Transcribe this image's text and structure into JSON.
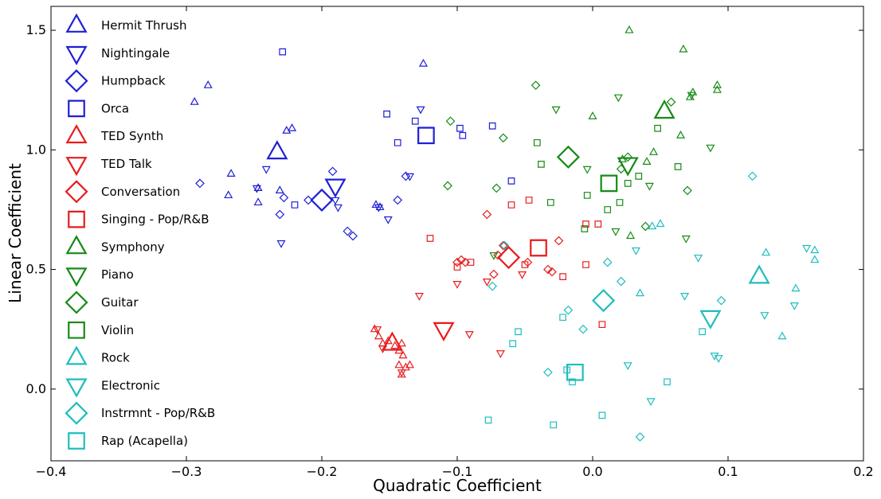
{
  "chart_data": {
    "type": "scatter",
    "title": "",
    "xlabel": "Quadratic Coefficient",
    "ylabel": "Linear Coefficient",
    "xlim": [
      -0.4,
      0.2
    ],
    "ylim": [
      -0.3,
      1.6
    ],
    "x_ticks": [
      -0.4,
      -0.3,
      -0.2,
      -0.1,
      0.0,
      0.1,
      0.2
    ],
    "x_tick_labels": [
      "−0.4",
      "−0.3",
      "−0.2",
      "−0.1",
      "0.0",
      "0.1",
      "0.2"
    ],
    "y_ticks": [
      0.0,
      0.5,
      1.0,
      1.5
    ],
    "y_tick_labels": [
      "0.0",
      "0.5",
      "1.0",
      "1.5"
    ],
    "grid": false,
    "legend_position": "left-inside",
    "colors": {
      "blue": "#1f1fd6",
      "red": "#e81c1c",
      "green": "#178a17",
      "cyan": "#1fbdbd"
    },
    "series": [
      {
        "name": "Hermit Thrush",
        "color": "blue",
        "marker": "triangle-up",
        "points": [
          [
            -0.294,
            1.2
          ],
          [
            -0.284,
            1.27
          ],
          [
            -0.269,
            0.81
          ],
          [
            -0.267,
            0.9
          ],
          [
            -0.247,
            0.84
          ],
          [
            -0.247,
            0.78
          ],
          [
            -0.231,
            0.83
          ],
          [
            -0.226,
            1.08
          ],
          [
            -0.222,
            1.09
          ],
          [
            -0.16,
            0.77
          ],
          [
            -0.157,
            0.76
          ],
          [
            -0.125,
            1.36
          ]
        ],
        "mean": [
          -0.233,
          0.99
        ]
      },
      {
        "name": "Nightingale",
        "color": "blue",
        "marker": "triangle-down",
        "points": [
          [
            -0.248,
            0.84
          ],
          [
            -0.241,
            0.92
          ],
          [
            -0.23,
            0.61
          ],
          [
            -0.19,
            0.79
          ],
          [
            -0.188,
            0.76
          ],
          [
            -0.158,
            0.76
          ],
          [
            -0.151,
            0.71
          ],
          [
            -0.135,
            0.89
          ],
          [
            -0.127,
            1.17
          ]
        ],
        "mean": [
          -0.19,
          0.85
        ]
      },
      {
        "name": "Humpback",
        "color": "blue",
        "marker": "diamond",
        "points": [
          [
            -0.29,
            0.86
          ],
          [
            -0.231,
            0.73
          ],
          [
            -0.228,
            0.8
          ],
          [
            -0.21,
            0.79
          ],
          [
            -0.192,
            0.91
          ],
          [
            -0.181,
            0.66
          ],
          [
            -0.177,
            0.64
          ],
          [
            -0.144,
            0.79
          ],
          [
            -0.138,
            0.89
          ]
        ],
        "mean": [
          -0.2,
          0.79
        ]
      },
      {
        "name": "Orca",
        "color": "blue",
        "marker": "square",
        "points": [
          [
            -0.229,
            1.41
          ],
          [
            -0.22,
            0.77
          ],
          [
            -0.152,
            1.15
          ],
          [
            -0.144,
            1.03
          ],
          [
            -0.131,
            1.12
          ],
          [
            -0.098,
            1.09
          ],
          [
            -0.096,
            1.06
          ],
          [
            -0.074,
            1.1
          ],
          [
            -0.06,
            0.87
          ]
        ],
        "mean": [
          -0.123,
          1.06
        ]
      },
      {
        "name": "TED Synth",
        "color": "red",
        "marker": "triangle-up",
        "points": [
          [
            -0.161,
            0.25
          ],
          [
            -0.158,
            0.22
          ],
          [
            -0.155,
            0.19
          ],
          [
            -0.151,
            0.2
          ],
          [
            -0.146,
            0.18
          ],
          [
            -0.143,
            0.16
          ],
          [
            -0.141,
            0.19
          ],
          [
            -0.143,
            0.1
          ],
          [
            -0.14,
            0.14
          ],
          [
            -0.141,
            0.06
          ],
          [
            -0.138,
            0.09
          ],
          [
            -0.135,
            0.1
          ]
        ],
        "mean": [
          -0.148,
          0.19
        ]
      },
      {
        "name": "TED Talk",
        "color": "red",
        "marker": "triangle-down",
        "points": [
          [
            -0.159,
            0.25
          ],
          [
            -0.155,
            0.17
          ],
          [
            -0.141,
            0.07
          ],
          [
            -0.128,
            0.39
          ],
          [
            -0.1,
            0.44
          ],
          [
            -0.091,
            0.23
          ],
          [
            -0.078,
            0.45
          ],
          [
            -0.068,
            0.15
          ],
          [
            -0.052,
            0.48
          ]
        ],
        "mean": [
          -0.11,
          0.25
        ]
      },
      {
        "name": "Conversation",
        "color": "red",
        "marker": "diamond",
        "points": [
          [
            -0.1,
            0.53
          ],
          [
            -0.097,
            0.54
          ],
          [
            -0.094,
            0.53
          ],
          [
            -0.078,
            0.73
          ],
          [
            -0.073,
            0.48
          ],
          [
            -0.07,
            0.56
          ],
          [
            -0.066,
            0.6
          ],
          [
            -0.048,
            0.53
          ],
          [
            -0.033,
            0.5
          ],
          [
            -0.03,
            0.49
          ],
          [
            -0.025,
            0.62
          ]
        ],
        "mean": [
          -0.062,
          0.55
        ]
      },
      {
        "name": "Singing - Pop/R&B",
        "color": "red",
        "marker": "square",
        "points": [
          [
            -0.12,
            0.63
          ],
          [
            -0.1,
            0.51
          ],
          [
            -0.09,
            0.53
          ],
          [
            -0.06,
            0.77
          ],
          [
            -0.05,
            0.52
          ],
          [
            -0.047,
            0.79
          ],
          [
            -0.022,
            0.47
          ],
          [
            -0.005,
            0.52
          ],
          [
            -0.005,
            0.69
          ],
          [
            0.004,
            0.69
          ],
          [
            0.007,
            0.27
          ]
        ],
        "mean": [
          -0.04,
          0.59
        ]
      },
      {
        "name": "Symphony",
        "color": "green",
        "marker": "triangle-up",
        "points": [
          [
            0.027,
            1.5
          ],
          [
            0.067,
            1.42
          ],
          [
            0.0,
            1.14
          ],
          [
            0.072,
            1.22
          ],
          [
            0.074,
            1.24
          ],
          [
            0.092,
            1.25
          ],
          [
            0.092,
            1.27
          ],
          [
            0.065,
            1.06
          ],
          [
            0.04,
            0.95
          ],
          [
            0.045,
            0.99
          ],
          [
            0.028,
            0.64
          ],
          [
            0.022,
            0.96
          ]
        ],
        "mean": [
          0.053,
          1.16
        ]
      },
      {
        "name": "Piano",
        "color": "green",
        "marker": "triangle-down",
        "points": [
          [
            -0.027,
            1.17
          ],
          [
            -0.004,
            0.92
          ],
          [
            0.019,
            1.22
          ],
          [
            0.073,
            1.23
          ],
          [
            0.087,
            1.01
          ],
          [
            0.042,
            0.85
          ],
          [
            0.017,
            0.66
          ],
          [
            0.069,
            0.63
          ],
          [
            -0.073,
            0.56
          ]
        ],
        "mean": [
          0.026,
          0.94
        ]
      },
      {
        "name": "Guitar",
        "color": "green",
        "marker": "diamond",
        "points": [
          [
            -0.105,
            1.12
          ],
          [
            -0.066,
            1.05
          ],
          [
            -0.042,
            1.27
          ],
          [
            -0.107,
            0.85
          ],
          [
            -0.071,
            0.84
          ],
          [
            0.058,
            1.2
          ],
          [
            0.07,
            0.83
          ],
          [
            0.039,
            0.68
          ],
          [
            0.026,
            0.97
          ],
          [
            0.021,
            0.92
          ]
        ],
        "mean": [
          -0.018,
          0.97
        ]
      },
      {
        "name": "Violin",
        "color": "green",
        "marker": "square",
        "points": [
          [
            -0.041,
            1.03
          ],
          [
            -0.031,
            0.78
          ],
          [
            -0.004,
            0.81
          ],
          [
            -0.006,
            0.67
          ],
          [
            0.011,
            0.75
          ],
          [
            0.02,
            0.78
          ],
          [
            0.026,
            0.86
          ],
          [
            0.034,
            0.89
          ],
          [
            0.048,
            1.09
          ],
          [
            0.063,
            0.93
          ],
          [
            -0.038,
            0.94
          ]
        ],
        "mean": [
          0.012,
          0.86
        ]
      },
      {
        "name": "Rock",
        "color": "cyan",
        "marker": "triangle-up",
        "points": [
          [
            0.05,
            0.69
          ],
          [
            0.035,
            0.4
          ],
          [
            0.128,
            0.57
          ],
          [
            0.15,
            0.42
          ],
          [
            0.14,
            0.22
          ],
          [
            0.164,
            0.58
          ],
          [
            0.164,
            0.54
          ],
          [
            0.044,
            0.68
          ]
        ],
        "mean": [
          0.123,
          0.47
        ]
      },
      {
        "name": "Electronic",
        "color": "cyan",
        "marker": "triangle-down",
        "points": [
          [
            0.032,
            0.58
          ],
          [
            0.026,
            0.1
          ],
          [
            0.043,
            -0.05
          ],
          [
            0.068,
            0.39
          ],
          [
            0.078,
            0.55
          ],
          [
            0.09,
            0.14
          ],
          [
            0.093,
            0.13
          ],
          [
            0.127,
            0.31
          ],
          [
            0.149,
            0.35
          ],
          [
            0.158,
            0.59
          ]
        ],
        "mean": [
          0.087,
          0.3
        ]
      },
      {
        "name": "Instrmnt - Pop/R&B",
        "color": "cyan",
        "marker": "diamond",
        "points": [
          [
            -0.074,
            0.43
          ],
          [
            -0.065,
            0.6
          ],
          [
            -0.033,
            0.07
          ],
          [
            -0.018,
            0.33
          ],
          [
            -0.007,
            0.25
          ],
          [
            0.011,
            0.53
          ],
          [
            0.021,
            0.45
          ],
          [
            0.035,
            -0.2
          ],
          [
            0.095,
            0.37
          ],
          [
            0.118,
            0.89
          ]
        ],
        "mean": [
          0.008,
          0.37
        ]
      },
      {
        "name": "Rap (Acapella)",
        "color": "cyan",
        "marker": "square",
        "points": [
          [
            -0.077,
            -0.13
          ],
          [
            -0.059,
            0.19
          ],
          [
            -0.055,
            0.24
          ],
          [
            -0.029,
            -0.15
          ],
          [
            -0.022,
            0.3
          ],
          [
            -0.019,
            0.08
          ],
          [
            -0.015,
            0.03
          ],
          [
            0.007,
            -0.11
          ],
          [
            0.055,
            0.03
          ],
          [
            0.081,
            0.24
          ]
        ],
        "mean": [
          -0.013,
          0.07
        ]
      }
    ]
  }
}
